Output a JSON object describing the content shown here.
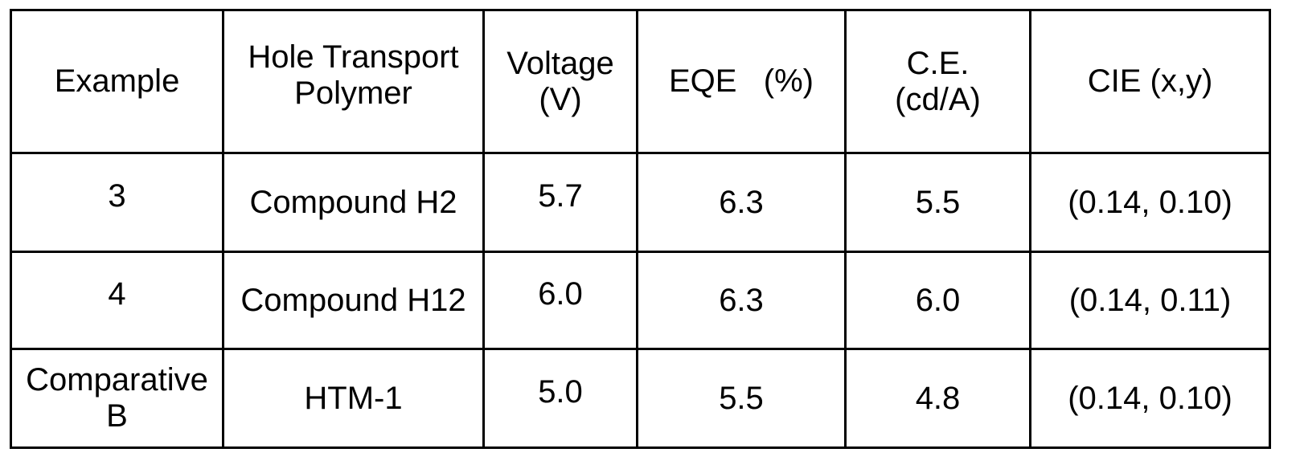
{
  "table": {
    "headers": [
      "Example",
      "Hole Transport\nPolymer",
      "Voltage\n(V)",
      "EQE   (%)",
      "C.E.\n(cd/A)",
      "CIE (x,y)"
    ],
    "rows": [
      [
        "3",
        "Compound H2",
        "5.7",
        "6.3",
        "5.5",
        "(0.14, 0.10)"
      ],
      [
        "4",
        "Compound H12",
        "6.0",
        "6.3",
        "6.0",
        "(0.14, 0.11)"
      ],
      [
        "Comparative\nB",
        "HTM-1",
        "5.0",
        "5.5",
        "4.8",
        "(0.14, 0.10)"
      ]
    ]
  }
}
